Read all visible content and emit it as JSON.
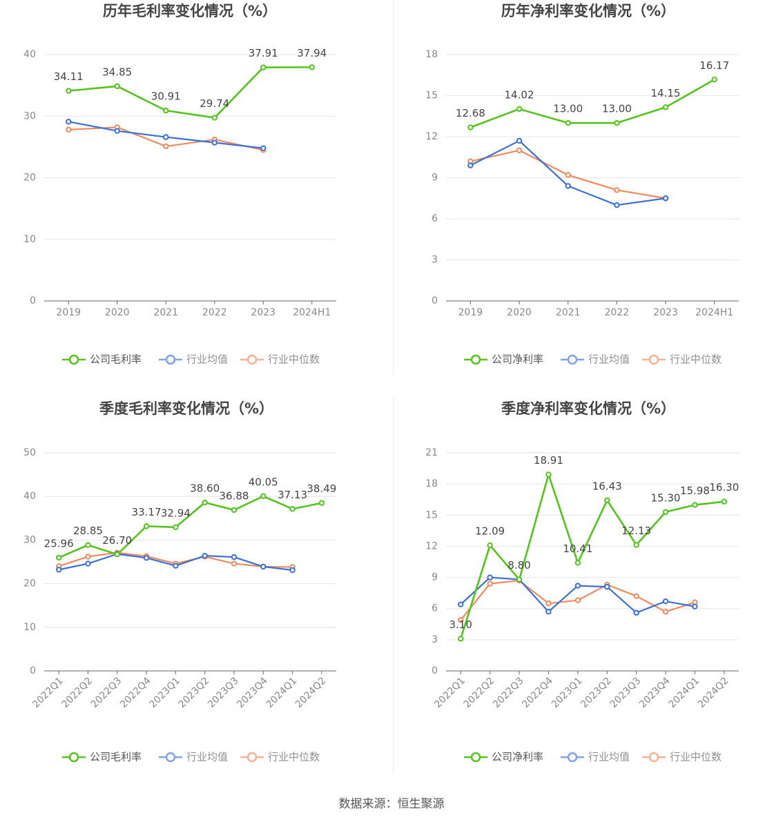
{
  "colors": {
    "company": "#52c41a",
    "industry_avg": "#3b6fd8",
    "industry_median": "#f08a5d",
    "grid": "#e3e6ee",
    "axis": "#666666",
    "tick_text": "#888888",
    "title_text": "#444444",
    "label_text": "#444444"
  },
  "legend_items": {
    "industry_avg": "行业均值",
    "industry_median": "行业中位数"
  },
  "source": "数据来源：恒生聚源",
  "chart_data": [
    {
      "type": "line",
      "title": "历年毛利率变化情况（%）",
      "categories": [
        "2019",
        "2020",
        "2021",
        "2022",
        "2023",
        "2024H1"
      ],
      "ylim": [
        0,
        40
      ],
      "yticks": [
        0,
        10,
        20,
        30,
        40
      ],
      "grid": true,
      "legend": "bottom",
      "series": [
        {
          "name": "公司毛利率",
          "key": "company",
          "values": [
            34.11,
            34.85,
            30.91,
            29.74,
            37.91,
            37.94
          ],
          "labels": [
            "34.11",
            "34.85",
            "30.91",
            "29.74",
            "37.91",
            "37.94"
          ]
        },
        {
          "name": "行业均值",
          "key": "industry_avg",
          "values": [
            29.1,
            27.6,
            26.6,
            25.7,
            24.8,
            null
          ]
        },
        {
          "name": "行业中位数",
          "key": "industry_median",
          "values": [
            27.8,
            28.2,
            25.1,
            26.2,
            24.5,
            null
          ]
        }
      ]
    },
    {
      "type": "line",
      "title": "历年净利率变化情况（%）",
      "categories": [
        "2019",
        "2020",
        "2021",
        "2022",
        "2023",
        "2024H1"
      ],
      "ylim": [
        0,
        18
      ],
      "yticks": [
        0,
        3,
        6,
        9,
        12,
        15,
        18
      ],
      "grid": true,
      "legend": "bottom",
      "series": [
        {
          "name": "公司净利率",
          "key": "company",
          "values": [
            12.68,
            14.02,
            13.0,
            13.0,
            14.15,
            16.17
          ],
          "labels": [
            "12.68",
            "14.02",
            "13.00",
            "13.00",
            "14.15",
            "16.17"
          ]
        },
        {
          "name": "行业均值",
          "key": "industry_avg",
          "values": [
            9.9,
            11.7,
            8.4,
            7.0,
            7.5,
            null
          ]
        },
        {
          "name": "行业中位数",
          "key": "industry_median",
          "values": [
            10.2,
            11.0,
            9.2,
            8.1,
            7.5,
            null
          ]
        }
      ]
    },
    {
      "type": "line",
      "title": "季度毛利率变化情况（%）",
      "categories": [
        "2022Q1",
        "2022Q2",
        "2022Q3",
        "2022Q4",
        "2023Q1",
        "2023Q2",
        "2023Q3",
        "2023Q4",
        "2024Q1",
        "2024Q2"
      ],
      "ylim": [
        0,
        50
      ],
      "yticks": [
        0,
        10,
        20,
        30,
        40,
        50
      ],
      "grid": true,
      "legend": "bottom",
      "series": [
        {
          "name": "公司毛利率",
          "key": "company",
          "values": [
            25.96,
            28.85,
            26.7,
            33.17,
            32.94,
            38.6,
            36.88,
            40.05,
            37.13,
            38.49
          ],
          "labels": [
            "25.96",
            "28.85",
            "26.70",
            "33.17",
            "32.94",
            "38.60",
            "36.88",
            "40.05",
            "37.13",
            "38.49"
          ]
        },
        {
          "name": "行业均值",
          "key": "industry_avg",
          "values": [
            23.2,
            24.6,
            26.8,
            25.9,
            24.1,
            26.4,
            26.1,
            23.9,
            23.1,
            null
          ]
        },
        {
          "name": "行业中位数",
          "key": "industry_median",
          "values": [
            24.0,
            26.2,
            27.1,
            26.3,
            24.6,
            26.2,
            24.6,
            23.9,
            23.8,
            null
          ]
        }
      ]
    },
    {
      "type": "line",
      "title": "季度净利率变化情况（%）",
      "categories": [
        "2022Q1",
        "2022Q2",
        "2022Q3",
        "2022Q4",
        "2023Q1",
        "2023Q2",
        "2023Q3",
        "2023Q4",
        "2024Q1",
        "2024Q2"
      ],
      "ylim": [
        0,
        21
      ],
      "yticks": [
        0,
        3,
        6,
        9,
        12,
        15,
        18,
        21
      ],
      "grid": true,
      "legend": "bottom",
      "series": [
        {
          "name": "公司净利率",
          "key": "company",
          "values": [
            3.1,
            12.09,
            8.8,
            18.91,
            10.41,
            16.43,
            12.13,
            15.3,
            15.98,
            16.3
          ],
          "labels": [
            "3.10",
            "12.09",
            "8.80",
            "18.91",
            "10.41",
            "16.43",
            "12.13",
            "15.30",
            "15.98",
            "16.30"
          ]
        },
        {
          "name": "行业均值",
          "key": "industry_avg",
          "values": [
            6.4,
            9.0,
            8.8,
            5.7,
            8.2,
            8.1,
            5.6,
            6.7,
            6.2,
            null
          ]
        },
        {
          "name": "行业中位数",
          "key": "industry_median",
          "values": [
            4.9,
            8.4,
            8.7,
            6.5,
            6.8,
            8.3,
            7.2,
            5.7,
            6.6,
            null
          ]
        }
      ]
    }
  ]
}
